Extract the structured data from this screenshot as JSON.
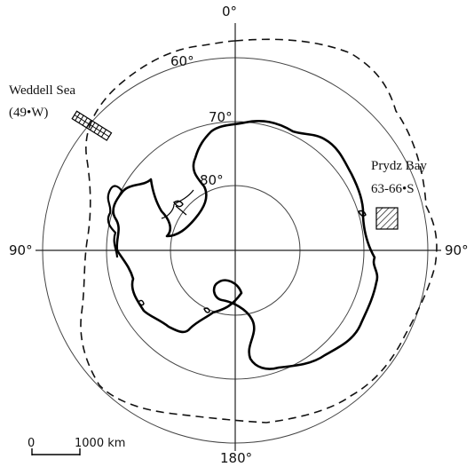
{
  "map": {
    "meridians": {
      "top": "0°",
      "bottom": "180°",
      "left": "90°",
      "right": "90°"
    },
    "parallels": {
      "lat60": "60°",
      "lat70": "70°",
      "lat80": "80°"
    },
    "sites": {
      "weddell": {
        "name": "Weddell Sea",
        "coords": "(49•W)"
      },
      "prydz": {
        "name": "Prydz Bay",
        "coords": "63-66•S"
      }
    },
    "scale_bar": {
      "start": "0",
      "end": "1000 km"
    }
  },
  "colors": {
    "ink": "#111111",
    "circles": "#444444",
    "background": "#ffffff"
  }
}
